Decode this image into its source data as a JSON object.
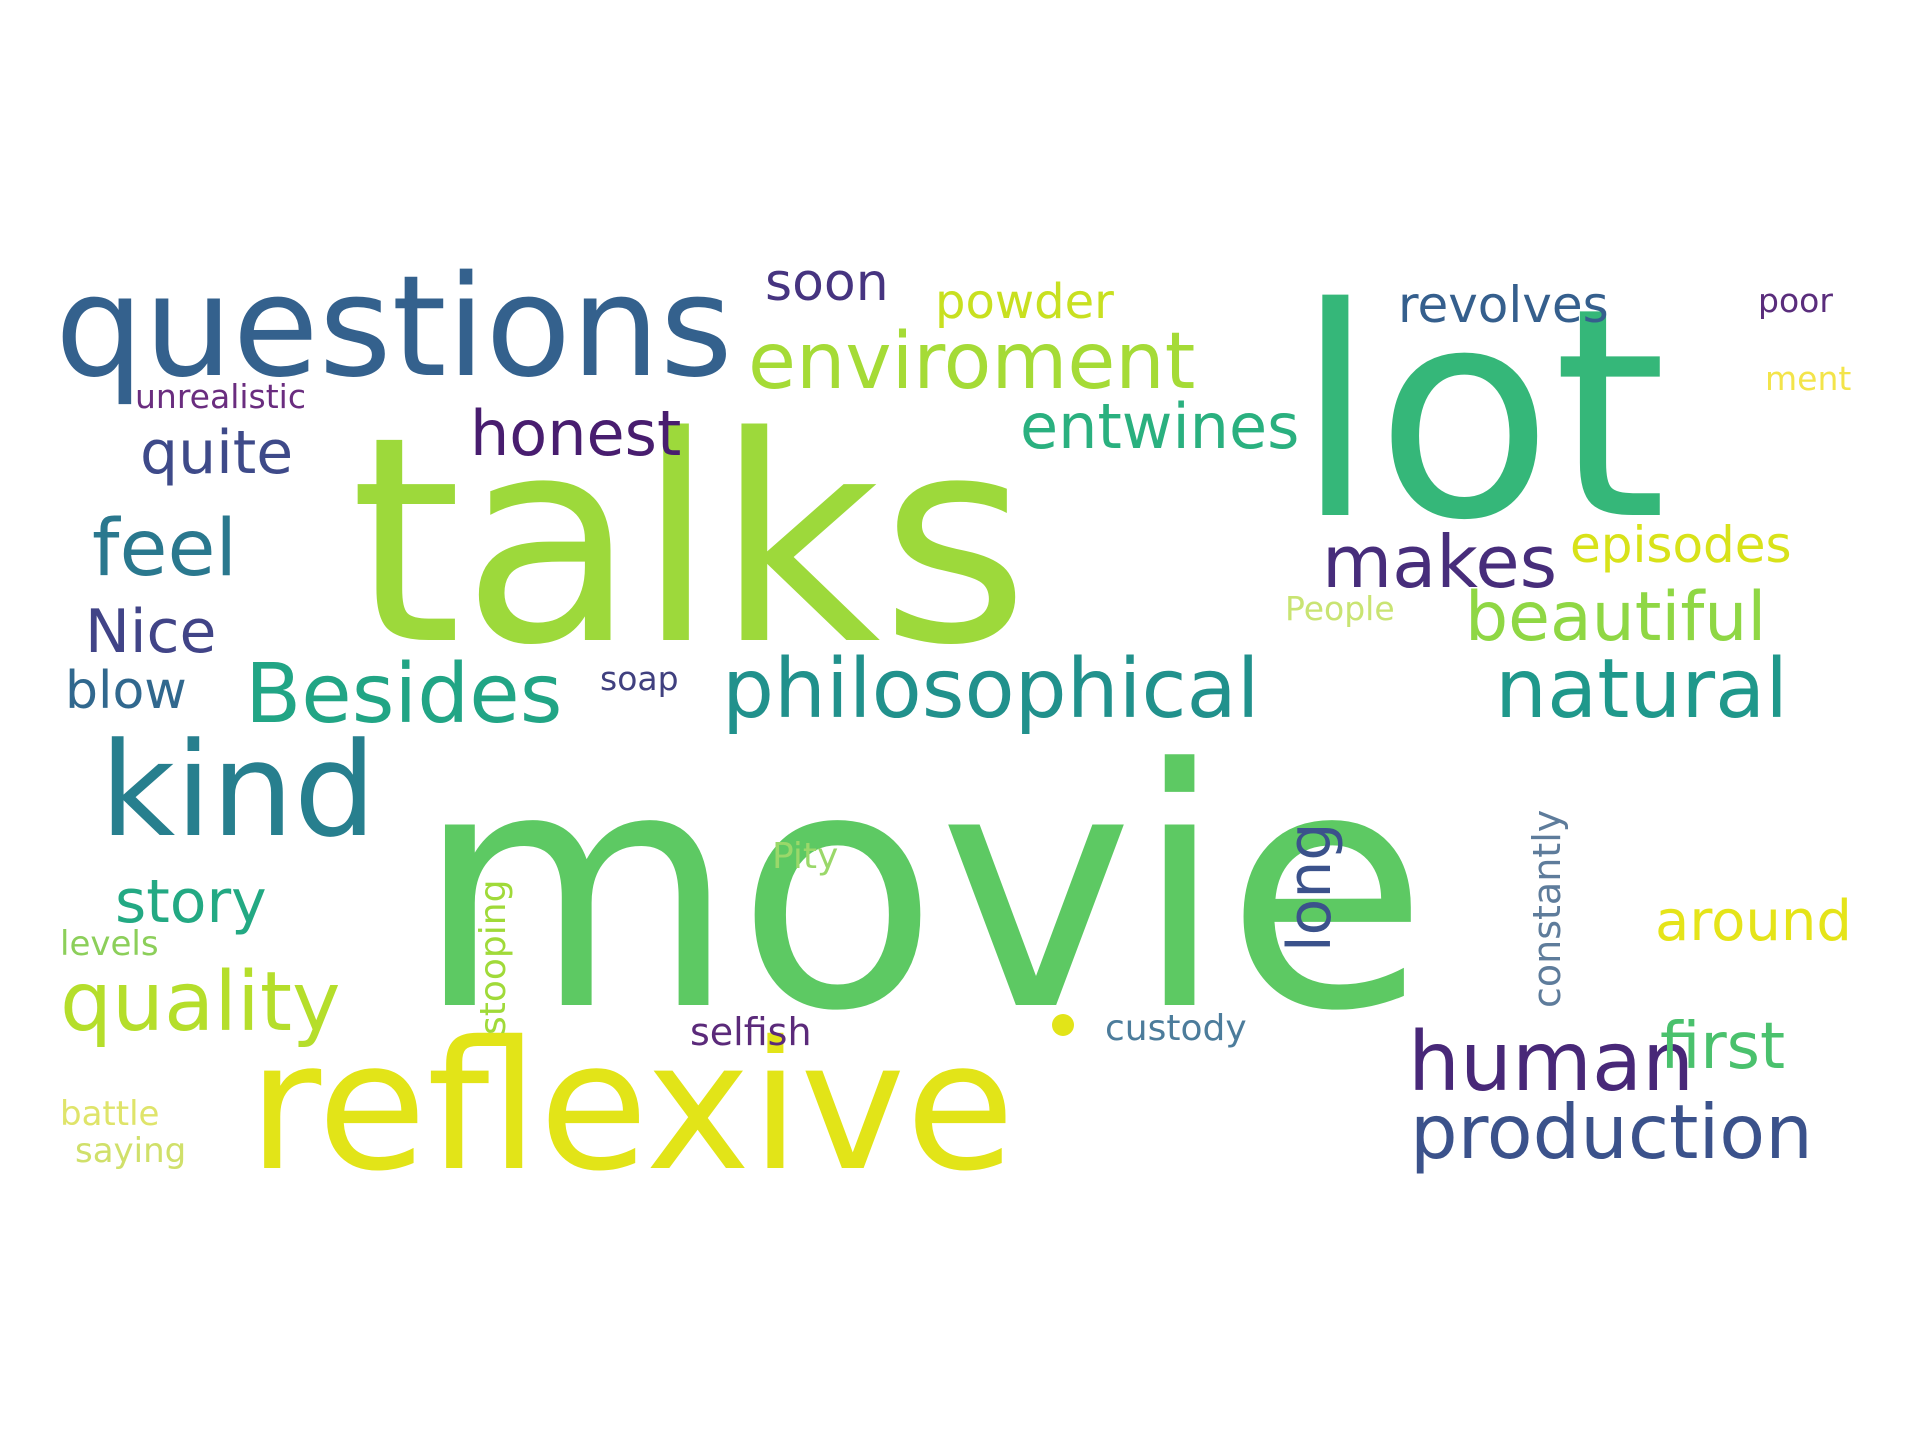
{
  "words": [
    {
      "text": "movie",
      "color": "#5dc963"
    },
    {
      "text": "talks",
      "color": "#9dd93b"
    },
    {
      "text": "lot",
      "color": "#35b779"
    },
    {
      "text": "reflexive",
      "color": "#e2e418"
    },
    {
      "text": "questions",
      "color": "#34618d"
    },
    {
      "text": "kind",
      "color": "#277f8e"
    },
    {
      "text": "philosophical",
      "color": "#21918c"
    },
    {
      "text": "enviroment",
      "color": "#a5db36"
    },
    {
      "text": "Besides",
      "color": "#21a585"
    },
    {
      "text": "natural",
      "color": "#1f988b"
    },
    {
      "text": "production",
      "color": "#3b528b"
    },
    {
      "text": "quality",
      "color": "#b5de2b"
    },
    {
      "text": "human",
      "color": "#482878"
    },
    {
      "text": "feel",
      "color": "#2a788e"
    },
    {
      "text": "makes",
      "color": "#472d7b"
    },
    {
      "text": "beautiful",
      "color": "#8fd744"
    },
    {
      "text": "entwines",
      "color": "#2ab07f"
    },
    {
      "text": "honest",
      "color": "#481d6f"
    },
    {
      "text": "story",
      "color": "#23a983"
    },
    {
      "text": "first",
      "color": "#4ac16d"
    },
    {
      "text": "episodes",
      "color": "#d8e219"
    },
    {
      "text": "around",
      "color": "#e5e419"
    },
    {
      "text": "quite",
      "color": "#3e4a89"
    },
    {
      "text": "Nice",
      "color": "#414487"
    },
    {
      "text": "revolves",
      "color": "#355f8d"
    },
    {
      "text": "soon",
      "color": "#463480"
    },
    {
      "text": "powder",
      "color": "#c8e020"
    },
    {
      "text": "blow",
      "color": "#31688e"
    },
    {
      "text": "long",
      "color": "#3b528b"
    },
    {
      "text": "constantly",
      "color": "#5e7c9b"
    },
    {
      "text": "stooping",
      "color": "#a0da39"
    },
    {
      "text": "selfish",
      "color": "#5b2a7a"
    },
    {
      "text": "custody",
      "color": "#4c7c9b"
    },
    {
      "text": "unrealistic",
      "color": "#6a2d7f"
    },
    {
      "text": "poor",
      "color": "#5a2d7c"
    },
    {
      "text": "ment",
      "color": "#f3e44a"
    },
    {
      "text": "People",
      "color": "#c9e472"
    },
    {
      "text": "soap",
      "color": "#40407f"
    },
    {
      "text": "Pity",
      "color": "#9ad86a"
    },
    {
      "text": "levels",
      "color": "#8ccf5a"
    },
    {
      "text": "battle",
      "color": "#dfe46a"
    },
    {
      "text": "saying",
      "color": "#d0e06a"
    },
    {
      "text": "dot-mark",
      "color": "#e2e418"
    }
  ]
}
